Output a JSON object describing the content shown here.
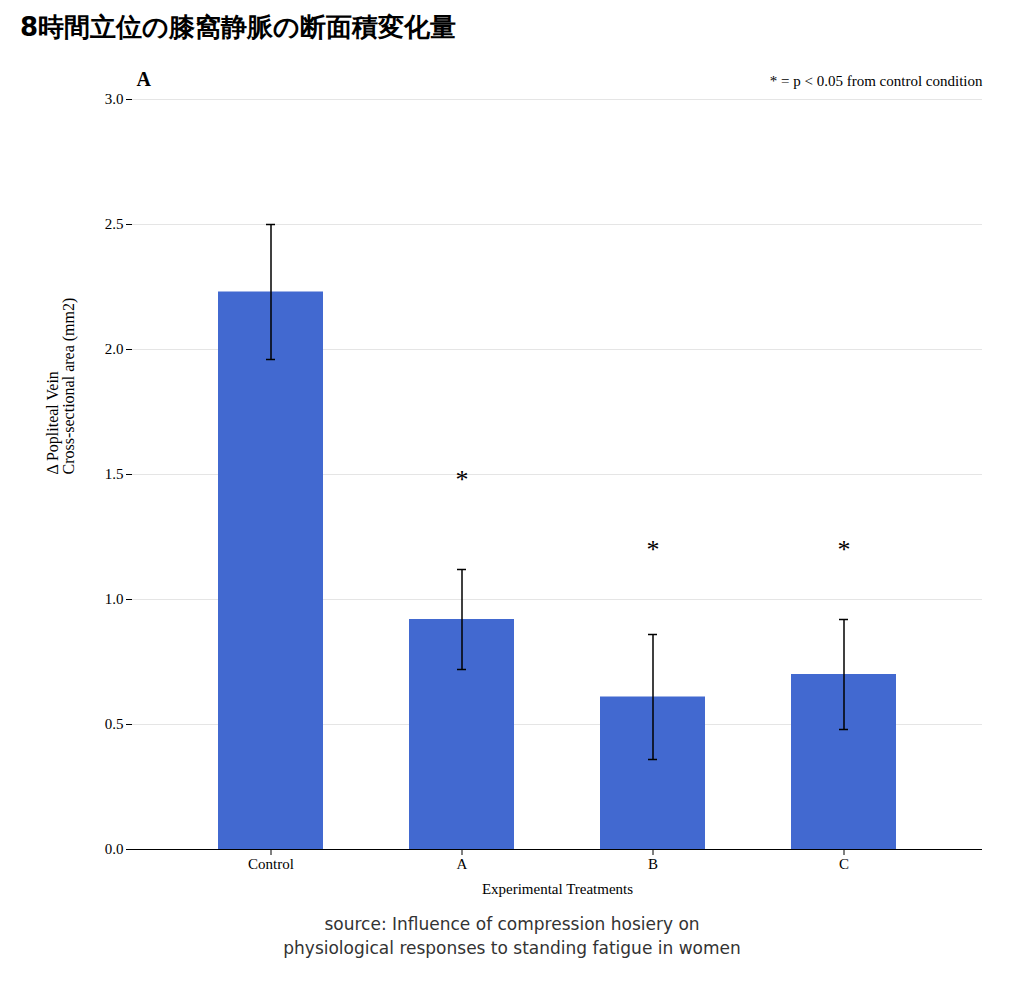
{
  "chart_data": {
    "type": "bar",
    "title": "8時間立位の膝窩静脈の断面積変化量",
    "categories": [
      "Control",
      "A",
      "B",
      "C"
    ],
    "values": [
      2.23,
      0.92,
      0.61,
      0.7
    ],
    "errors_upper": [
      0.27,
      0.2,
      0.25,
      0.22
    ],
    "errors_lower": [
      0.27,
      0.2,
      0.25,
      0.22
    ],
    "color": "#4269d0",
    "xlabel": "Experimental Treatments",
    "ylabel": "Δ Popliteal Vein\nCross-sectional area (mm2)",
    "ylim": [
      0.0,
      3.0
    ],
    "yticks": [
      {
        "value": 0.0,
        "label": "0.0"
      },
      0.5,
      {
        "value": 1.0,
        "label": "1.0"
      },
      1.5,
      {
        "value": 2.0,
        "label": "2.0"
      },
      2.5,
      {
        "value": 3.0,
        "label": "3.0"
      }
    ],
    "grid": true,
    "panel_label": "A",
    "annotation": "* = p < 0.05 from control condition",
    "significance": [
      {
        "text": "*",
        "x": "A",
        "y": 1.48
      },
      {
        "text": "*",
        "x": "B",
        "y": 1.2
      },
      {
        "text": "*",
        "x": "C",
        "y": 1.2
      }
    ],
    "source": [
      "source: Influence of compression hosiery on",
      "physiological responses to standing fatigue in women"
    ]
  }
}
